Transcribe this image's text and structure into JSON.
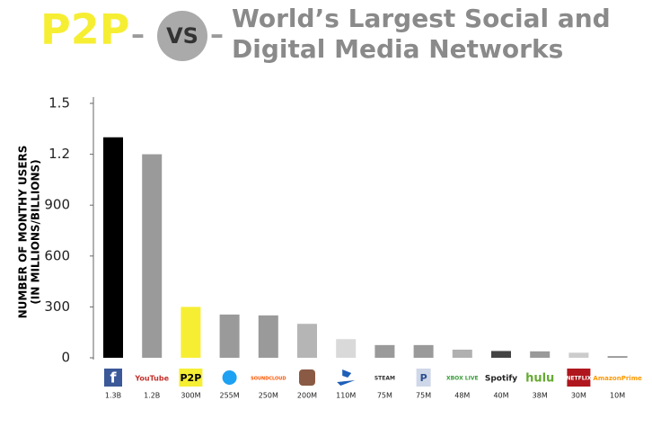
{
  "header": {
    "p2p": "P2P",
    "dash_left": "–",
    "vs": "VS",
    "dash_right": "–",
    "title_line1": "World’s Largest Social and",
    "title_line2": "Digital Media Networks"
  },
  "chart_data": {
    "type": "bar",
    "ylabel_line1": "NUMBER OF MONTHY USERS",
    "ylabel_line2": "(IN MILLIONS/BILLIONS)",
    "categories": [
      "f",
      "YouTube",
      "P2P",
      null,
      "SOUNDCLOUD",
      null,
      null,
      "STEAM",
      "P",
      "XBOX LIVE",
      "Spotify",
      "hulu",
      "NETFLIX",
      "AmazonPrime"
    ],
    "values": [
      1300,
      1200,
      300,
      255,
      250,
      200,
      110,
      75,
      75,
      48,
      40,
      38,
      30,
      10
    ],
    "value_labels": [
      "1.3B",
      "1.2B",
      "300M",
      "255M",
      "250M",
      "200M",
      "110M",
      "75M",
      "75M",
      "48M",
      "40M",
      "38M",
      "30M",
      "10M"
    ],
    "colors": [
      "#000000",
      "#9a9a9a",
      "#f6ee33",
      "#9a9a9a",
      "#9a9a9a",
      "#b5b5b5",
      "#d9d9d9",
      "#9a9a9a",
      "#9a9a9a",
      "#b0b0b0",
      "#444444",
      "#9a9a9a",
      "#cccccc",
      "#9a9a9a"
    ],
    "ylim": [
      0,
      1500
    ],
    "yticks": [
      0,
      300,
      600,
      900,
      {
        "value": 1200,
        "label": "1.2"
      },
      {
        "value": 1500,
        "label": "1.5"
      }
    ],
    "grid": false
  }
}
